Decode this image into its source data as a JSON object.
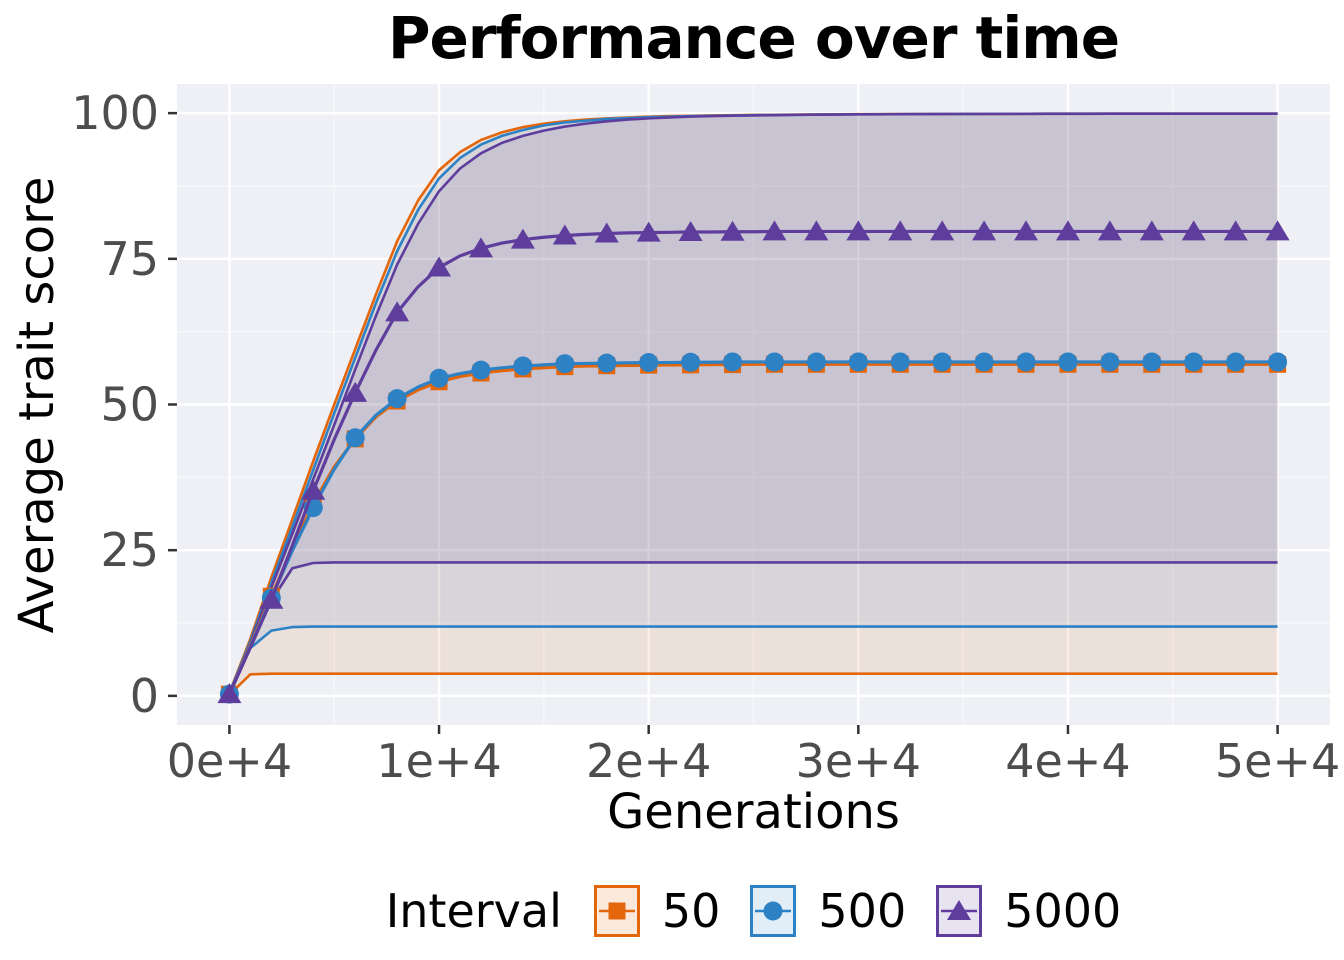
{
  "chart_data": {
    "type": "line",
    "title": "Performance over time",
    "xlabel": "Generations",
    "ylabel": "Average trait score",
    "legend_title": "Interval",
    "legend_position": "bottom",
    "grid": "on",
    "panel_background": "#eef0f5",
    "gridline_color": "#ffffff",
    "tick_label_color": "#4d4d4d",
    "tick_mark_color": "#333333",
    "xlim": [
      -2500,
      52500
    ],
    "ylim": [
      -5,
      105
    ],
    "x_ticks": {
      "values": [
        0,
        10000,
        20000,
        30000,
        40000,
        50000
      ],
      "labels": [
        "0e+4",
        "1e+4",
        "2e+4",
        "3e+4",
        "4e+4",
        "5e+4"
      ]
    },
    "y_ticks": {
      "values": [
        0,
        25,
        50,
        75,
        100
      ],
      "labels": [
        "0",
        "25",
        "50",
        "75",
        "100"
      ]
    },
    "x_minor": [
      5000,
      15000,
      25000,
      35000,
      45000
    ],
    "y_minor": [
      12.5,
      37.5,
      62.5,
      87.5
    ],
    "x": [
      0,
      1000,
      2000,
      3000,
      4000,
      5000,
      6000,
      7000,
      8000,
      9000,
      10000,
      11000,
      12000,
      13000,
      14000,
      15000,
      16000,
      17000,
      18000,
      19000,
      20000,
      21000,
      22000,
      23000,
      24000,
      25000,
      26000,
      27000,
      28000,
      29000,
      30000,
      31000,
      32000,
      33000,
      34000,
      35000,
      36000,
      37000,
      38000,
      39000,
      40000,
      41000,
      42000,
      43000,
      44000,
      45000,
      46000,
      47000,
      48000,
      49000,
      50000
    ],
    "marker_every": 2,
    "series": [
      {
        "name": "50",
        "marker": "square",
        "color": "#e3660b",
        "legend_key_fill": "#fbe9dc",
        "mean": [
          0.3,
          8.7,
          17.1,
          25.2,
          33.0,
          39.3,
          44.1,
          47.9,
          50.6,
          52.5,
          53.9,
          54.8,
          55.4,
          55.8,
          56.1,
          56.3,
          56.5,
          56.6,
          56.65,
          56.7,
          56.75,
          56.8,
          56.8,
          56.85,
          56.85,
          56.9,
          56.9,
          56.9,
          56.9,
          56.9,
          56.9,
          56.9,
          56.9,
          56.9,
          56.9,
          56.9,
          56.9,
          56.9,
          56.9,
          56.9,
          56.9,
          56.9,
          56.9,
          56.9,
          56.9,
          56.9,
          56.9,
          56.9,
          56.9,
          56.9,
          56.9
        ],
        "lower": [
          0.2,
          3.7,
          3.8,
          3.8,
          3.8,
          3.8,
          3.8,
          3.8,
          3.8,
          3.8,
          3.8,
          3.8,
          3.8,
          3.8,
          3.8,
          3.8,
          3.8,
          3.8,
          3.8,
          3.8,
          3.8,
          3.8,
          3.8,
          3.8,
          3.8,
          3.8,
          3.8,
          3.8,
          3.8,
          3.8,
          3.8,
          3.8,
          3.8,
          3.8,
          3.8,
          3.8,
          3.8,
          3.8,
          3.8,
          3.8,
          3.8,
          3.8,
          3.8,
          3.8,
          3.8,
          3.8,
          3.8,
          3.8,
          3.8,
          3.8,
          3.8
        ],
        "upper": [
          0.5,
          9.8,
          20.3,
          30.3,
          40.3,
          50.0,
          59.5,
          69.0,
          78.0,
          85.0,
          90.2,
          93.3,
          95.4,
          96.7,
          97.6,
          98.2,
          98.6,
          98.9,
          99.1,
          99.25,
          99.4,
          99.5,
          99.55,
          99.6,
          99.65,
          99.7,
          99.72,
          99.75,
          99.78,
          99.8,
          99.82,
          99.83,
          99.85,
          99.86,
          99.87,
          99.88,
          99.88,
          99.89,
          99.89,
          99.9,
          99.9,
          99.9,
          99.9,
          99.9,
          99.9,
          99.9,
          99.9,
          99.9,
          99.9,
          99.9,
          99.9
        ]
      },
      {
        "name": "500",
        "marker": "circle",
        "color": "#2d81c5",
        "legend_key_fill": "#e1edf7",
        "mean": [
          0.3,
          8.5,
          16.8,
          24.9,
          32.3,
          38.9,
          44.3,
          48.2,
          51.0,
          53.0,
          54.5,
          55.3,
          55.9,
          56.3,
          56.6,
          56.8,
          57.0,
          57.05,
          57.1,
          57.15,
          57.2,
          57.2,
          57.25,
          57.25,
          57.3,
          57.3,
          57.3,
          57.3,
          57.3,
          57.3,
          57.3,
          57.3,
          57.3,
          57.3,
          57.3,
          57.3,
          57.3,
          57.3,
          57.3,
          57.3,
          57.3,
          57.3,
          57.3,
          57.3,
          57.3,
          57.3,
          57.3,
          57.3,
          57.3,
          57.3,
          57.3
        ],
        "lower": [
          0.2,
          8.2,
          11.2,
          11.8,
          11.9,
          11.9,
          11.9,
          11.9,
          11.9,
          11.9,
          11.9,
          11.9,
          11.9,
          11.9,
          11.9,
          11.9,
          11.9,
          11.9,
          11.9,
          11.9,
          11.9,
          11.9,
          11.9,
          11.9,
          11.9,
          11.9,
          11.9,
          11.9,
          11.9,
          11.9,
          11.9,
          11.9,
          11.9,
          11.9,
          11.9,
          11.9,
          11.9,
          11.9,
          11.9,
          11.9,
          11.9,
          11.9,
          11.9,
          11.9,
          11.9,
          11.9,
          11.9,
          11.9,
          11.9,
          11.9,
          11.9
        ],
        "upper": [
          0.5,
          9.4,
          19.4,
          29.0,
          38.8,
          48.5,
          58.0,
          67.5,
          76.3,
          83.4,
          88.8,
          92.3,
          94.6,
          96.1,
          97.1,
          97.9,
          98.4,
          98.7,
          99.0,
          99.15,
          99.3,
          99.4,
          99.5,
          99.55,
          99.6,
          99.65,
          99.68,
          99.72,
          99.75,
          99.78,
          99.8,
          99.82,
          99.83,
          99.85,
          99.86,
          99.87,
          99.88,
          99.88,
          99.89,
          99.9,
          99.9,
          99.9,
          99.9,
          99.9,
          99.9,
          99.9,
          99.9,
          99.9,
          99.9,
          99.9,
          99.9
        ]
      },
      {
        "name": "5000",
        "marker": "triangle",
        "color": "#5e3d9d",
        "legend_key_fill": "#e8e3f1",
        "mean": [
          0.3,
          8.3,
          16.5,
          25.8,
          35.2,
          44.0,
          52.0,
          59.4,
          65.8,
          70.2,
          73.5,
          75.5,
          76.8,
          77.7,
          78.3,
          78.7,
          79.0,
          79.2,
          79.35,
          79.45,
          79.5,
          79.55,
          79.6,
          79.6,
          79.65,
          79.65,
          79.7,
          79.7,
          79.7,
          79.7,
          79.7,
          79.7,
          79.7,
          79.7,
          79.7,
          79.7,
          79.7,
          79.7,
          79.7,
          79.7,
          79.7,
          79.7,
          79.7,
          79.7,
          79.7,
          79.7,
          79.7,
          79.7,
          79.7,
          79.7,
          79.7
        ],
        "lower": [
          0.2,
          8.3,
          16.3,
          21.9,
          22.8,
          22.9,
          22.9,
          22.9,
          22.9,
          22.9,
          22.9,
          22.9,
          22.9,
          22.9,
          22.9,
          22.9,
          22.9,
          22.9,
          22.9,
          22.9,
          22.9,
          22.9,
          22.9,
          22.9,
          22.9,
          22.9,
          22.9,
          22.9,
          22.9,
          22.9,
          22.9,
          22.9,
          22.9,
          22.9,
          22.9,
          22.9,
          22.9,
          22.9,
          22.9,
          22.9,
          22.9,
          22.9,
          22.9,
          22.9,
          22.9,
          22.9,
          22.9,
          22.9,
          22.9,
          22.9,
          22.9
        ],
        "upper": [
          0.5,
          9.0,
          18.6,
          27.8,
          37.2,
          46.5,
          56.0,
          65.3,
          74.0,
          81.0,
          86.6,
          90.5,
          93.1,
          94.9,
          96.1,
          97.0,
          97.7,
          98.2,
          98.6,
          98.9,
          99.1,
          99.25,
          99.4,
          99.5,
          99.55,
          99.6,
          99.65,
          99.7,
          99.73,
          99.76,
          99.79,
          99.8,
          99.82,
          99.83,
          99.84,
          99.85,
          99.86,
          99.87,
          99.88,
          99.88,
          99.89,
          99.89,
          99.9,
          99.9,
          99.9,
          99.9,
          99.9,
          99.9,
          99.9,
          99.9,
          99.9
        ]
      }
    ]
  }
}
